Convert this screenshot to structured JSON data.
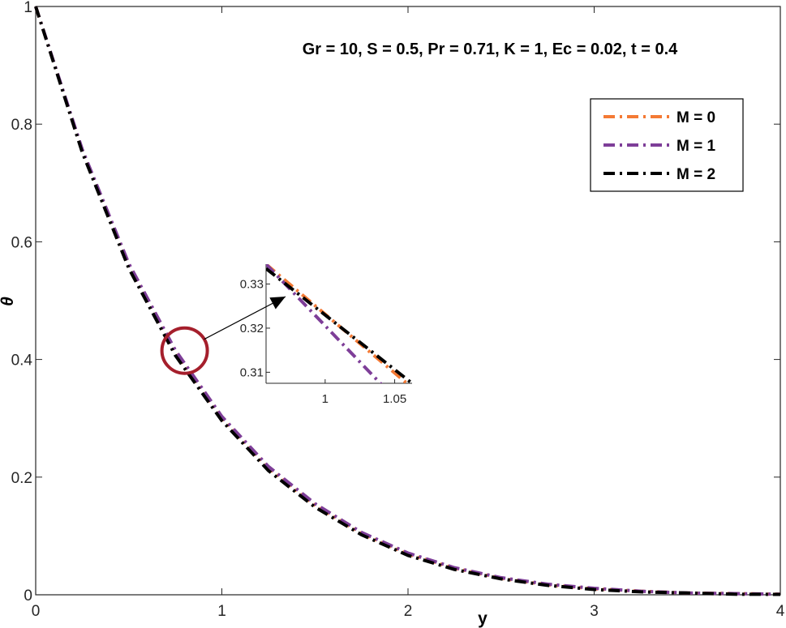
{
  "chart_data": [
    {
      "type": "line",
      "title": "",
      "xlabel": "y",
      "ylabel": "θ",
      "xlim": [
        0,
        4
      ],
      "ylim": [
        0,
        1
      ],
      "xticks": [
        "0",
        "1",
        "2",
        "3",
        "4"
      ],
      "yticks": [
        "0",
        "0.2",
        "0.4",
        "0.6",
        "0.8",
        "1"
      ],
      "grid": false,
      "legend_position": "top-right",
      "annotation": "Gr = 10, S = 0.5, Pr = 0.71, K = 1, Ec = 0.02, t = 0.4",
      "x": [
        0,
        0.25,
        0.5,
        0.75,
        1.0,
        1.25,
        1.5,
        1.75,
        2.0,
        2.25,
        2.5,
        2.75,
        3.0,
        3.25,
        3.5,
        3.75,
        4.0
      ],
      "series": [
        {
          "name": "M = 0",
          "color": "#f47a35",
          "values": [
            1.0,
            0.755,
            0.56,
            0.412,
            0.3,
            0.215,
            0.152,
            0.104,
            0.069,
            0.045,
            0.028,
            0.017,
            0.01,
            0.006,
            0.003,
            0.002,
            0.001
          ]
        },
        {
          "name": "M = 1",
          "color": "#7e3e98",
          "values": [
            1.0,
            0.757,
            0.563,
            0.416,
            0.303,
            0.218,
            0.155,
            0.106,
            0.071,
            0.046,
            0.029,
            0.018,
            0.011,
            0.006,
            0.003,
            0.002,
            0.001
          ]
        },
        {
          "name": "M = 2",
          "color": "#000000",
          "values": [
            1.0,
            0.752,
            0.555,
            0.407,
            0.296,
            0.211,
            0.149,
            0.102,
            0.067,
            0.043,
            0.027,
            0.016,
            0.009,
            0.005,
            0.003,
            0.001,
            0.0007
          ]
        }
      ]
    },
    {
      "type": "line",
      "title": "",
      "xlim": [
        0.9575,
        1.0625
      ],
      "ylim": [
        0.3075,
        0.3345
      ],
      "xticks": [
        "1",
        "1.05"
      ],
      "yticks": [
        "0.31",
        "0.32",
        "0.33"
      ],
      "grid": false,
      "x": [
        0.9575,
        1.0625
      ],
      "series": [
        {
          "name": "M = 0",
          "color": "#f47a35",
          "values": [
            0.3345,
            0.3065
          ]
        },
        {
          "name": "M = 1",
          "color": "#7e3e98",
          "values": [
            0.3345,
            0.3
          ]
        },
        {
          "name": "M = 2",
          "color": "#000000",
          "values": [
            0.3335,
            0.3075
          ]
        }
      ]
    }
  ],
  "colors": {
    "highlight_circle": "#a51f2c",
    "axis": "#262626"
  }
}
